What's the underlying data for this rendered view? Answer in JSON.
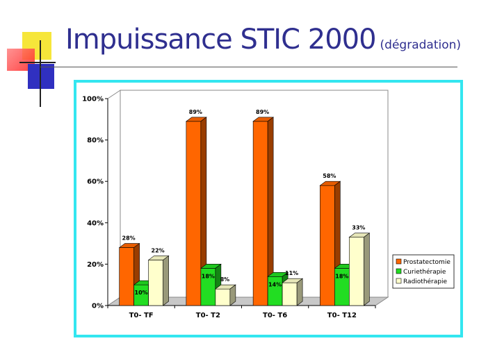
{
  "slide": {
    "title": "Impuissance STIC 2000",
    "subtitle": "(dégradation)"
  },
  "chart_data": {
    "type": "bar",
    "categories": [
      "T0- TF",
      "T0- T2",
      "T0- T6",
      "T0- T12"
    ],
    "series": [
      {
        "name": "Prostatectomie",
        "values": [
          28,
          89,
          89,
          58
        ],
        "color": "#ff6600"
      },
      {
        "name": "Curiethérapie",
        "values": [
          10,
          18,
          14,
          18
        ],
        "color": "#22dd22"
      },
      {
        "name": "Radiothérapie",
        "values": [
          22,
          8,
          11,
          33
        ],
        "color": "#ffffcc"
      }
    ],
    "value_labels": [
      [
        "28%",
        "89%",
        "89%",
        "58%"
      ],
      [
        "10%",
        "18%",
        "14%",
        "18%"
      ],
      [
        "22%",
        "8%",
        "11%",
        "33%"
      ]
    ],
    "ylim": [
      0,
      100
    ],
    "yticks": [
      "0%",
      "20%",
      "40%",
      "60%",
      "80%",
      "100%"
    ],
    "ytick_values": [
      0,
      20,
      40,
      60,
      80,
      100
    ],
    "legend_position": "right",
    "grid": false,
    "style": "3d-bar"
  }
}
